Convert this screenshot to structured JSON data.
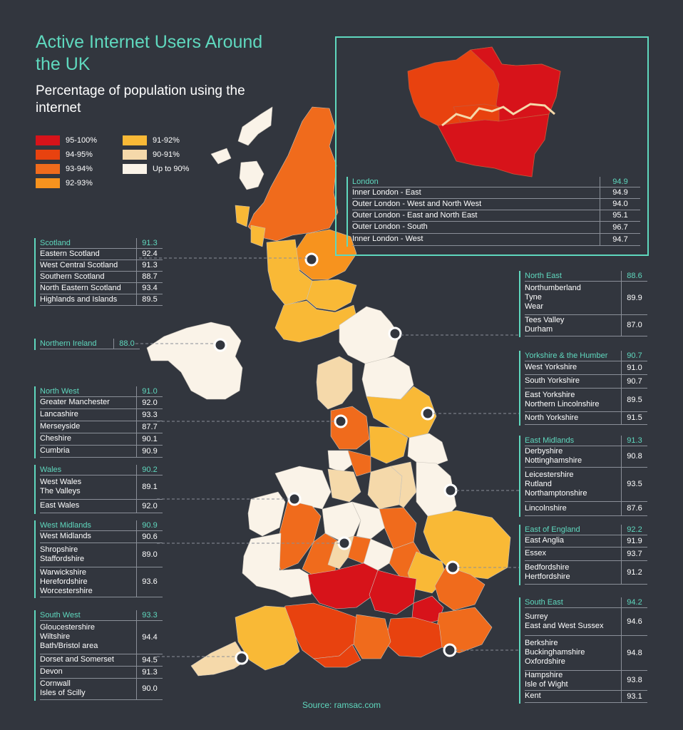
{
  "title": "Active Internet Users Around the UK",
  "subtitle": "Percentage of population using the internet",
  "source": "Source: ramsac.com",
  "legend": [
    {
      "label": "95-100%",
      "color": "#d7131a"
    },
    {
      "label": "94-95%",
      "color": "#e8420f"
    },
    {
      "label": "93-94%",
      "color": "#f06b1c"
    },
    {
      "label": "92-93%",
      "color": "#f7931e"
    },
    {
      "label": "91-92%",
      "color": "#f9b936"
    },
    {
      "label": "90-91%",
      "color": "#f5d9aa"
    },
    {
      "label": "Up to 90%",
      "color": "#faf3e8"
    }
  ],
  "regions": {
    "scotland": {
      "name": "Scotland",
      "value": "91.3",
      "rows": [
        {
          "label": "Eastern Scotland",
          "value": "92.4"
        },
        {
          "label": "West Central Scotland",
          "value": "91.3"
        },
        {
          "label": "Southern Scotland",
          "value": "88.7"
        },
        {
          "label": "North Eastern Scotland",
          "value": "93.4"
        },
        {
          "label": "Highlands and Islands",
          "value": "89.5"
        }
      ]
    },
    "northern_ireland": {
      "name": "Northern Ireland",
      "value": "88.0",
      "rows": []
    },
    "north_west": {
      "name": "North West",
      "value": "91.0",
      "rows": [
        {
          "label": "Greater Manchester",
          "value": "92.0"
        },
        {
          "label": "Lancashire",
          "value": "93.3"
        },
        {
          "label": "Merseyside",
          "value": "87.7"
        },
        {
          "label": "Cheshire",
          "value": "90.1"
        },
        {
          "label": "Cumbria",
          "value": "90.9"
        }
      ]
    },
    "wales": {
      "name": "Wales",
      "value": "90.2",
      "rows": [
        {
          "label": "West Wales\nThe Valleys",
          "value": "89.1"
        },
        {
          "label": "East Wales",
          "value": "92.0"
        }
      ]
    },
    "west_midlands": {
      "name": "West Midlands",
      "value": "90.9",
      "rows": [
        {
          "label": "West Midlands",
          "value": "90.6"
        },
        {
          "label": "Shropshire\nStaffordshire",
          "value": "89.0"
        },
        {
          "label": "Warwickshire\nHerefordshire\nWorcestershire",
          "value": "93.6"
        }
      ]
    },
    "south_west": {
      "name": "South West",
      "value": "93.3",
      "rows": [
        {
          "label": "Gloucestershire\nWiltshire\nBath/Bristol area",
          "value": "94.4"
        },
        {
          "label": "Dorset and Somerset",
          "value": "94.5"
        },
        {
          "label": "Devon",
          "value": "91.3"
        },
        {
          "label": "Cornwall\nIsles of Scilly",
          "value": "90.0"
        }
      ]
    },
    "london": {
      "name": "London",
      "value": "94.9",
      "rows": [
        {
          "label": "Inner London - East",
          "value": "94.9"
        },
        {
          "label": "Outer London - West and North West",
          "value": "94.0"
        },
        {
          "label": "Outer London - East and North East",
          "value": "95.1"
        },
        {
          "label": "Outer London - South",
          "value": "96.7"
        },
        {
          "label": "Inner London - West",
          "value": "94.7"
        }
      ]
    },
    "north_east": {
      "name": "North East",
      "value": "88.6",
      "rows": [
        {
          "label": "Northumberland\nTyne\nWear",
          "value": "89.9"
        },
        {
          "label": "Tees Valley\nDurham",
          "value": "87.0"
        }
      ]
    },
    "yorkshire": {
      "name": "Yorkshire & the Humber",
      "value": "90.7",
      "rows": [
        {
          "label": "West Yorkshire",
          "value": "91.0"
        },
        {
          "label": "South Yorkshire",
          "value": "90.7"
        },
        {
          "label": "East Yorkshire\nNorthern Lincolnshire",
          "value": "89.5"
        },
        {
          "label": "North Yorkshire",
          "value": "91.5"
        }
      ]
    },
    "east_midlands": {
      "name": "East Midlands",
      "value": "91.3",
      "rows": [
        {
          "label": "Derbyshire\nNottinghamshire",
          "value": "90.8"
        },
        {
          "label": "Leicestershire\nRutland\nNorthamptonshire",
          "value": "93.5"
        },
        {
          "label": "Lincolnshire",
          "value": "87.6"
        }
      ]
    },
    "east_of_england": {
      "name": "East of England",
      "value": "92.2",
      "rows": [
        {
          "label": "East Anglia",
          "value": "91.9"
        },
        {
          "label": "Essex",
          "value": "93.7"
        },
        {
          "label": "Bedfordshire\nHertfordshire",
          "value": "91.2"
        }
      ]
    },
    "south_east": {
      "name": "South East",
      "value": "94.2",
      "rows": [
        {
          "label": "Surrey\nEast and West Sussex",
          "value": "94.6"
        },
        {
          "label": "Berkshire\nBuckinghamshire\nOxfordshire",
          "value": "94.8"
        },
        {
          "label": "Hampshire\nIsle of Wight",
          "value": "93.8"
        },
        {
          "label": "Kent",
          "value": "93.1"
        }
      ]
    }
  }
}
